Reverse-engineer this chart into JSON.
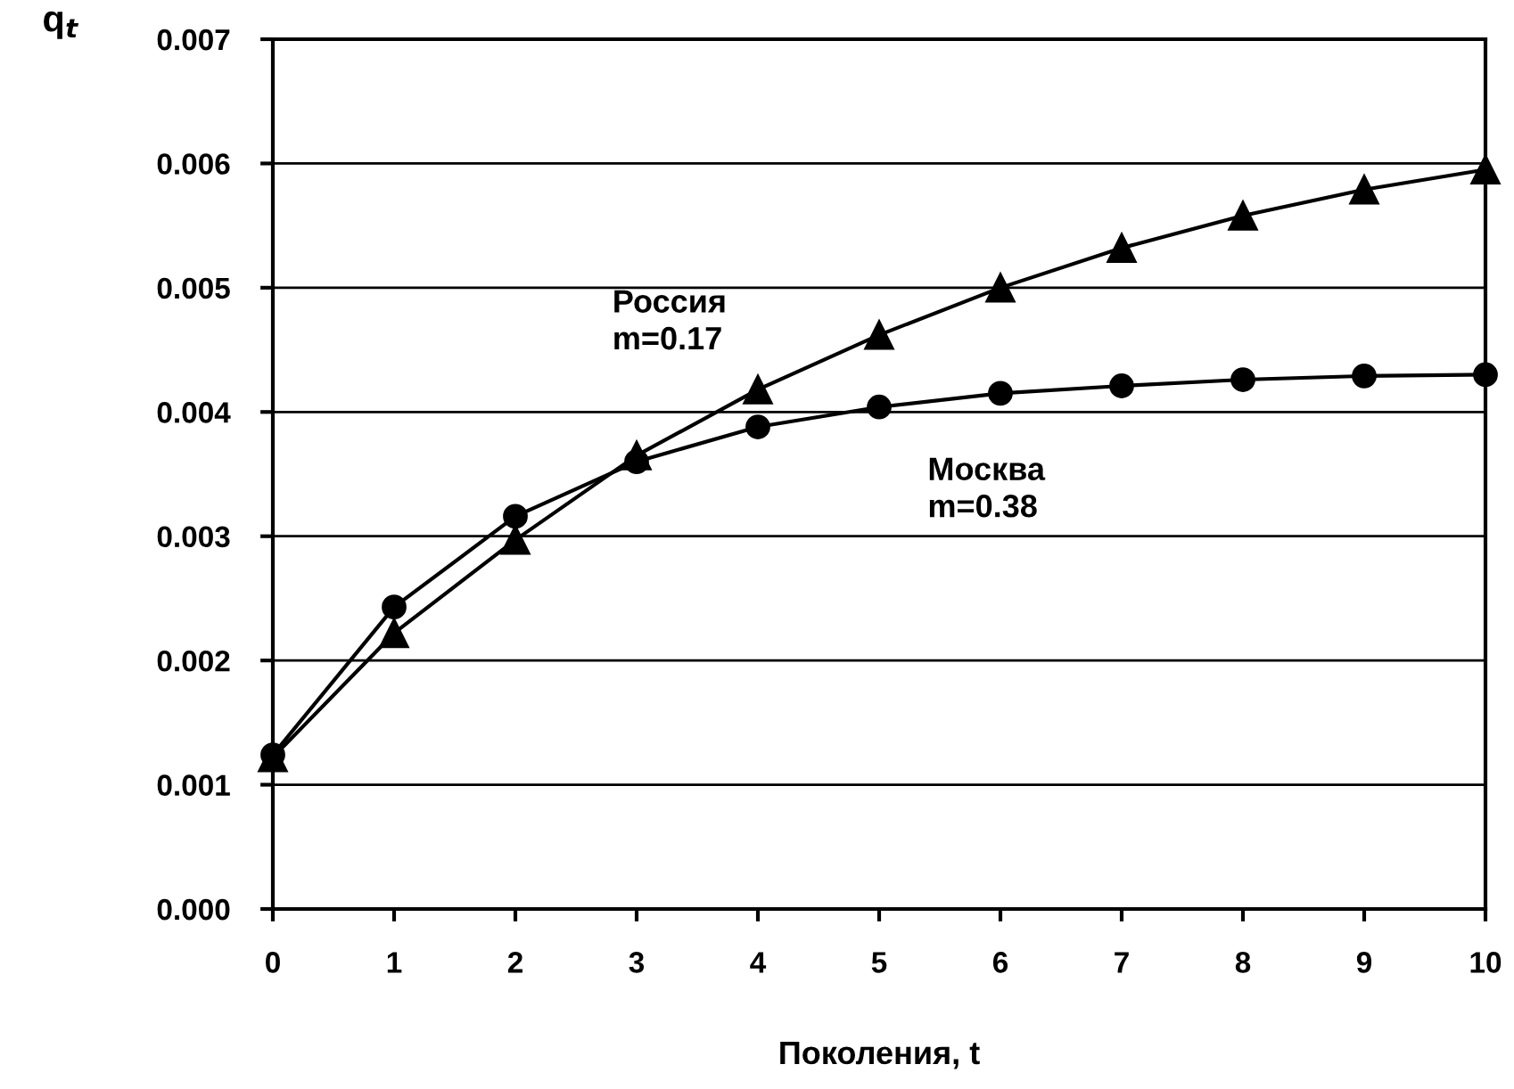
{
  "chart_data": {
    "type": "line",
    "xlabel": "Поколения, t",
    "ylabel": "q$_{t}$",
    "x": [
      0,
      1,
      2,
      3,
      4,
      5,
      6,
      7,
      8,
      9,
      10
    ],
    "series": [
      {
        "name": "Россия\nm=0.17",
        "color": "#000000",
        "marker": "triangle",
        "values": [
          0.00122,
          0.00222,
          0.00297,
          0.00365,
          0.00418,
          0.00462,
          0.005,
          0.00532,
          0.00558,
          0.00579,
          0.00595
        ]
      },
      {
        "name": "Москва\nm=0.38",
        "color": "#000000",
        "marker": "circle",
        "values": [
          0.00124,
          0.00243,
          0.00316,
          0.0036,
          0.00388,
          0.00404,
          0.00415,
          0.00421,
          0.00426,
          0.00429,
          0.0043
        ]
      }
    ],
    "xlim": [
      0,
      10
    ],
    "xticks": [
      0,
      1,
      2,
      3,
      4,
      5,
      6,
      7,
      8,
      9,
      10
    ],
    "ylim": [
      0,
      0.007
    ],
    "yticks": [
      {
        "value": 0,
        "label": "0.000"
      },
      {
        "value": 0.001,
        "label": "0.001"
      },
      {
        "value": 0.002,
        "label": "0.002"
      },
      {
        "value": 0.003,
        "label": "0.003"
      },
      {
        "value": 0.004,
        "label": "0.004"
      },
      {
        "value": 0.005,
        "label": "0.005"
      },
      {
        "value": 0.006,
        "label": "0.006"
      },
      {
        "value": 0.007,
        "label": "0.007"
      }
    ],
    "grid": "y",
    "legend": false,
    "line_style": "solid"
  }
}
